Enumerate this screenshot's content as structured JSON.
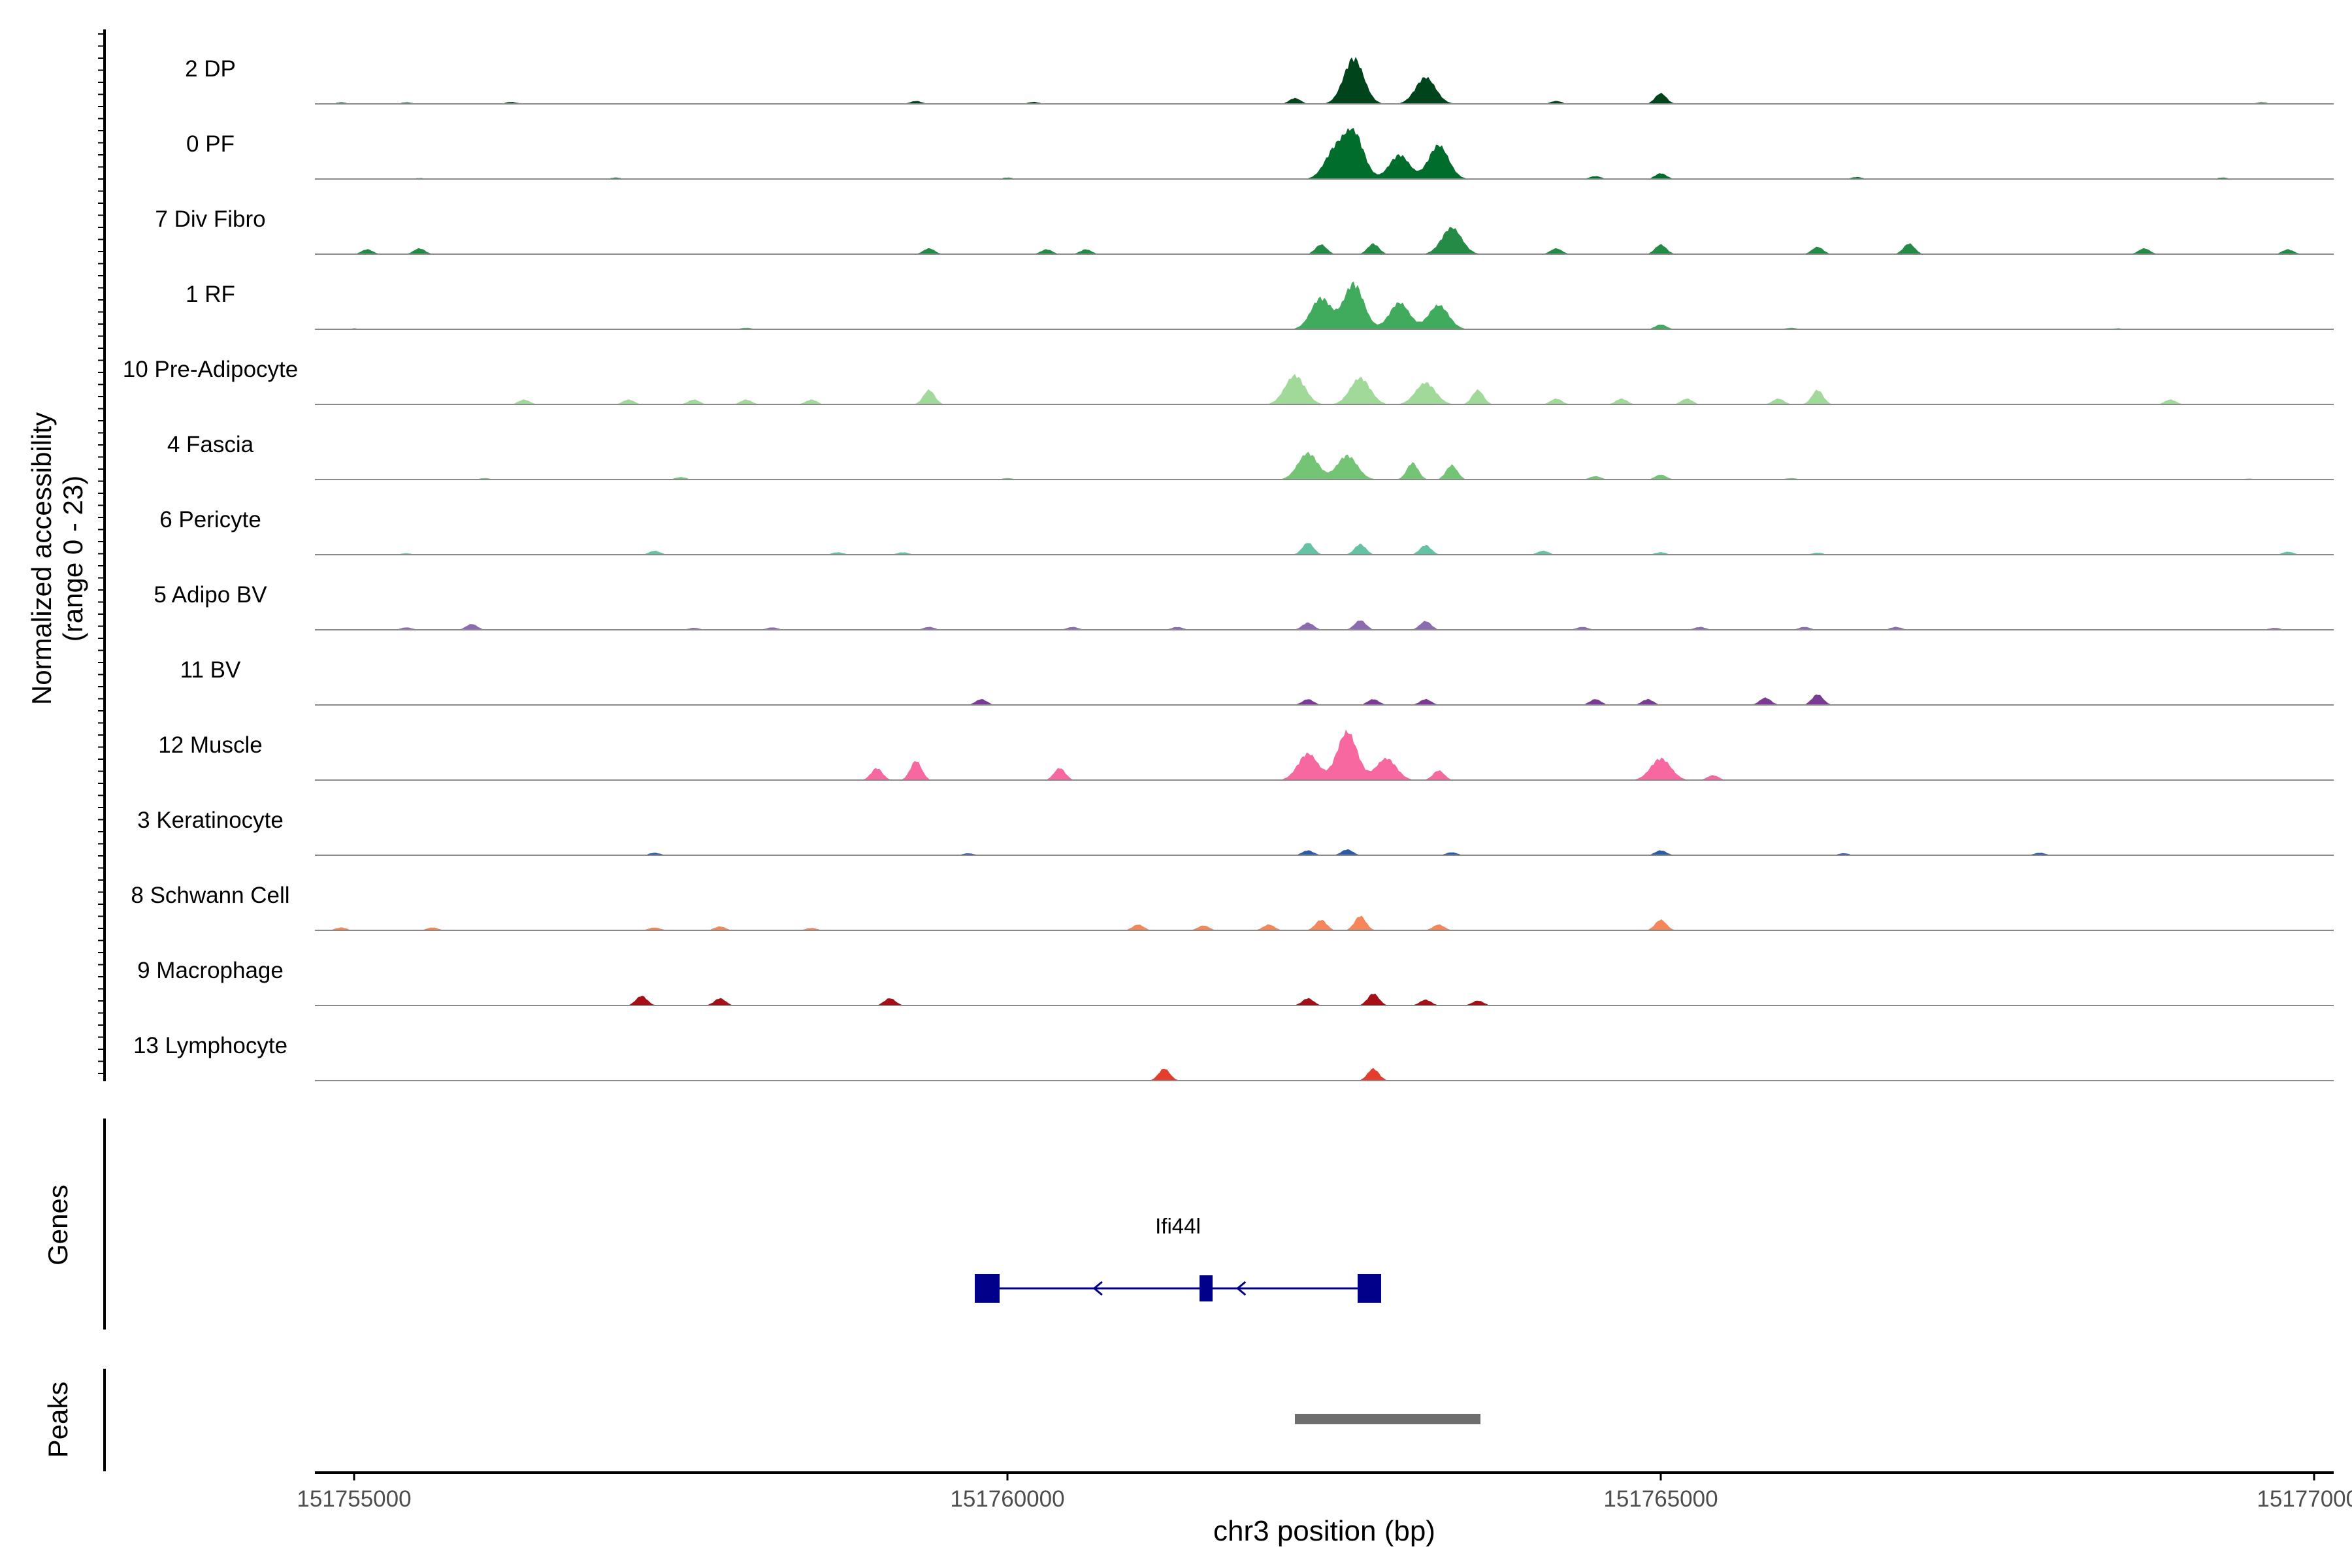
{
  "chart_data": {
    "type": "area",
    "title": "",
    "xlabel": "chr3 position (bp)",
    "ylabel": "Normalized accessibility",
    "ylabel_sub": "(range 0 - 23)",
    "xlim": [
      151754700,
      151770150
    ],
    "x_ticks": [
      151755000,
      151760000,
      151765000,
      151770000
    ],
    "x_tick_labels": [
      "151755000",
      "151760000",
      "151765000",
      "151770000"
    ],
    "tracks": [
      {
        "name": "2 DP",
        "color": "#00441b",
        "peaks": [
          [
            151754900,
            0.03
          ],
          [
            151755400,
            0.03
          ],
          [
            151756200,
            0.04
          ],
          [
            151759300,
            0.06
          ],
          [
            151760200,
            0.04
          ],
          [
            151762200,
            0.12
          ],
          [
            151762650,
            0.95
          ],
          [
            151763200,
            0.55
          ],
          [
            151764200,
            0.06
          ],
          [
            151765000,
            0.22
          ],
          [
            151769600,
            0.03
          ]
        ]
      },
      {
        "name": "0 PF",
        "color": "#006d2c",
        "peaks": [
          [
            151755500,
            0.02
          ],
          [
            151757000,
            0.03
          ],
          [
            151760000,
            0.03
          ],
          [
            151762500,
            0.55
          ],
          [
            151762650,
            0.95
          ],
          [
            151763000,
            0.5
          ],
          [
            151763300,
            0.7
          ],
          [
            151764500,
            0.06
          ],
          [
            151765000,
            0.12
          ],
          [
            151766500,
            0.04
          ],
          [
            151769300,
            0.03
          ]
        ]
      },
      {
        "name": "7 Div Fibro",
        "color": "#238b45",
        "peaks": [
          [
            151755100,
            0.1
          ],
          [
            151755500,
            0.12
          ],
          [
            151759400,
            0.12
          ],
          [
            151760300,
            0.1
          ],
          [
            151760600,
            0.1
          ],
          [
            151762400,
            0.2
          ],
          [
            151762800,
            0.22
          ],
          [
            151763400,
            0.55
          ],
          [
            151764200,
            0.12
          ],
          [
            151765000,
            0.2
          ],
          [
            151766200,
            0.15
          ],
          [
            151766900,
            0.22
          ],
          [
            151768700,
            0.12
          ],
          [
            151769800,
            0.1
          ]
        ]
      },
      {
        "name": "1 RF",
        "color": "#41ab5d",
        "peaks": [
          [
            151755000,
            0.02
          ],
          [
            151758000,
            0.03
          ],
          [
            151762400,
            0.65
          ],
          [
            151762650,
            0.95
          ],
          [
            151763000,
            0.55
          ],
          [
            151763300,
            0.5
          ],
          [
            151765000,
            0.1
          ],
          [
            151766000,
            0.03
          ],
          [
            151768500,
            0.02
          ]
        ]
      },
      {
        "name": "10 Pre-Adipocyte",
        "color": "#a1d99b",
        "peaks": [
          [
            151756300,
            0.1
          ],
          [
            151757100,
            0.1
          ],
          [
            151757600,
            0.1
          ],
          [
            151758000,
            0.1
          ],
          [
            151758500,
            0.1
          ],
          [
            151759400,
            0.3
          ],
          [
            151762200,
            0.6
          ],
          [
            151762700,
            0.55
          ],
          [
            151763200,
            0.45
          ],
          [
            151763600,
            0.3
          ],
          [
            151764200,
            0.12
          ],
          [
            151764700,
            0.12
          ],
          [
            151765200,
            0.12
          ],
          [
            151765900,
            0.12
          ],
          [
            151766200,
            0.3
          ],
          [
            151768900,
            0.1
          ]
        ]
      },
      {
        "name": "4 Fascia",
        "color": "#74c476",
        "peaks": [
          [
            151756000,
            0.03
          ],
          [
            151757500,
            0.05
          ],
          [
            151760000,
            0.03
          ],
          [
            151762300,
            0.55
          ],
          [
            151762600,
            0.5
          ],
          [
            151763100,
            0.35
          ],
          [
            151763400,
            0.3
          ],
          [
            151764500,
            0.07
          ],
          [
            151765000,
            0.1
          ],
          [
            151766000,
            0.03
          ],
          [
            151769500,
            0.02
          ]
        ]
      },
      {
        "name": "6 Pericyte",
        "color": "#66c2a4",
        "peaks": [
          [
            151755400,
            0.03
          ],
          [
            151757300,
            0.08
          ],
          [
            151758700,
            0.05
          ],
          [
            151759200,
            0.05
          ],
          [
            151762300,
            0.25
          ],
          [
            151762700,
            0.22
          ],
          [
            151763200,
            0.2
          ],
          [
            151764100,
            0.08
          ],
          [
            151765000,
            0.05
          ],
          [
            151766200,
            0.04
          ],
          [
            151769800,
            0.06
          ]
        ]
      },
      {
        "name": "5 Adipo BV",
        "color": "#8c6bb1",
        "peaks": [
          [
            151755400,
            0.05
          ],
          [
            151755900,
            0.12
          ],
          [
            151757600,
            0.04
          ],
          [
            151758200,
            0.05
          ],
          [
            151759400,
            0.06
          ],
          [
            151760500,
            0.06
          ],
          [
            151761300,
            0.06
          ],
          [
            151762300,
            0.15
          ],
          [
            151762700,
            0.2
          ],
          [
            151763200,
            0.18
          ],
          [
            151764400,
            0.06
          ],
          [
            151765300,
            0.06
          ],
          [
            151766100,
            0.06
          ],
          [
            151766800,
            0.06
          ],
          [
            151769700,
            0.04
          ]
        ]
      },
      {
        "name": "11 BV",
        "color": "#7a3b94",
        "peaks": [
          [
            151759800,
            0.12
          ],
          [
            151762300,
            0.12
          ],
          [
            151762800,
            0.12
          ],
          [
            151763200,
            0.12
          ],
          [
            151764500,
            0.12
          ],
          [
            151764900,
            0.12
          ],
          [
            151765800,
            0.15
          ],
          [
            151766200,
            0.22
          ]
        ]
      },
      {
        "name": "12 Muscle",
        "color": "#f768a1",
        "peaks": [
          [
            151759000,
            0.25
          ],
          [
            151759300,
            0.4
          ],
          [
            151760400,
            0.25
          ],
          [
            151762300,
            0.55
          ],
          [
            151762600,
            1.0
          ],
          [
            151762900,
            0.45
          ],
          [
            151763300,
            0.2
          ],
          [
            151765000,
            0.45
          ],
          [
            151765400,
            0.1
          ]
        ]
      },
      {
        "name": "3 Keratinocyte",
        "color": "#2c5ba6",
        "peaks": [
          [
            151757300,
            0.05
          ],
          [
            151759700,
            0.04
          ],
          [
            151762300,
            0.1
          ],
          [
            151762600,
            0.12
          ],
          [
            151763400,
            0.06
          ],
          [
            151765000,
            0.1
          ],
          [
            151766400,
            0.04
          ],
          [
            151767900,
            0.05
          ]
        ]
      },
      {
        "name": "8 Schwann Cell",
        "color": "#f4865a",
        "peaks": [
          [
            151754900,
            0.06
          ],
          [
            151755600,
            0.06
          ],
          [
            151757300,
            0.06
          ],
          [
            151757800,
            0.08
          ],
          [
            151758500,
            0.05
          ],
          [
            151761000,
            0.12
          ],
          [
            151761500,
            0.1
          ],
          [
            151762000,
            0.12
          ],
          [
            151762400,
            0.22
          ],
          [
            151762700,
            0.3
          ],
          [
            151763300,
            0.12
          ],
          [
            151765000,
            0.22
          ]
        ]
      },
      {
        "name": "9 Macrophage",
        "color": "#a50f15",
        "peaks": [
          [
            151757200,
            0.2
          ],
          [
            151757800,
            0.15
          ],
          [
            151759100,
            0.15
          ],
          [
            151762300,
            0.15
          ],
          [
            151762800,
            0.25
          ],
          [
            151763200,
            0.12
          ],
          [
            151763600,
            0.1
          ]
        ]
      },
      {
        "name": "13 Lymphocyte",
        "color": "#e33d2d",
        "peaks": [
          [
            151761200,
            0.25
          ],
          [
            151762800,
            0.25
          ]
        ]
      }
    ],
    "genes": [
      {
        "name": "Ifi44l",
        "strand": "-",
        "start": 151759750,
        "end": 151762860,
        "exons": [
          [
            151759750,
            151759940
          ],
          [
            151761470,
            151761570
          ],
          [
            151762680,
            151762860
          ]
        ]
      }
    ],
    "peaks_track": [
      [
        151762200,
        151763620
      ]
    ],
    "panel_labels": {
      "genes": "Genes",
      "peaks": "Peaks"
    },
    "colors": {
      "gene": "#00008b",
      "peak": "#6e6e6e",
      "baseline": "#8a8a8a",
      "axis": "#000000"
    }
  }
}
